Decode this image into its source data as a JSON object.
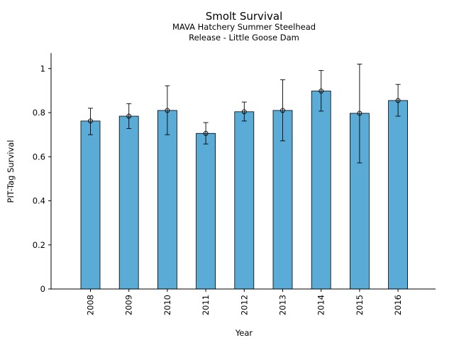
{
  "chart_data": {
    "type": "bar",
    "title": "Smolt Survival",
    "subtitle_lines": [
      "MAVA Hatchery Summer Steelhead",
      "Release - Little Goose Dam"
    ],
    "xlabel": "Year",
    "ylabel": "PIT-Tag Survival",
    "categories": [
      "2008",
      "2009",
      "2010",
      "2011",
      "2012",
      "2013",
      "2014",
      "2015",
      "2016"
    ],
    "values": [
      0.762,
      0.784,
      0.81,
      0.706,
      0.804,
      0.81,
      0.898,
      0.797,
      0.855
    ],
    "error_low": [
      0.7,
      0.728,
      0.7,
      0.658,
      0.762,
      0.672,
      0.807,
      0.572,
      0.784
    ],
    "error_high": [
      0.82,
      0.841,
      0.922,
      0.755,
      0.848,
      0.949,
      0.991,
      1.02,
      0.928
    ],
    "ylim": [
      0,
      1.07
    ],
    "yticks": [
      0,
      0.2,
      0.4,
      0.6,
      0.8,
      1
    ],
    "ytick_labels": [
      "0",
      "0.2",
      "0.4",
      "0.6",
      "0.8",
      "1"
    ],
    "bar_color": "#5aabd6",
    "bar_edge_color": "#000000",
    "grid": false,
    "legend": "none"
  }
}
